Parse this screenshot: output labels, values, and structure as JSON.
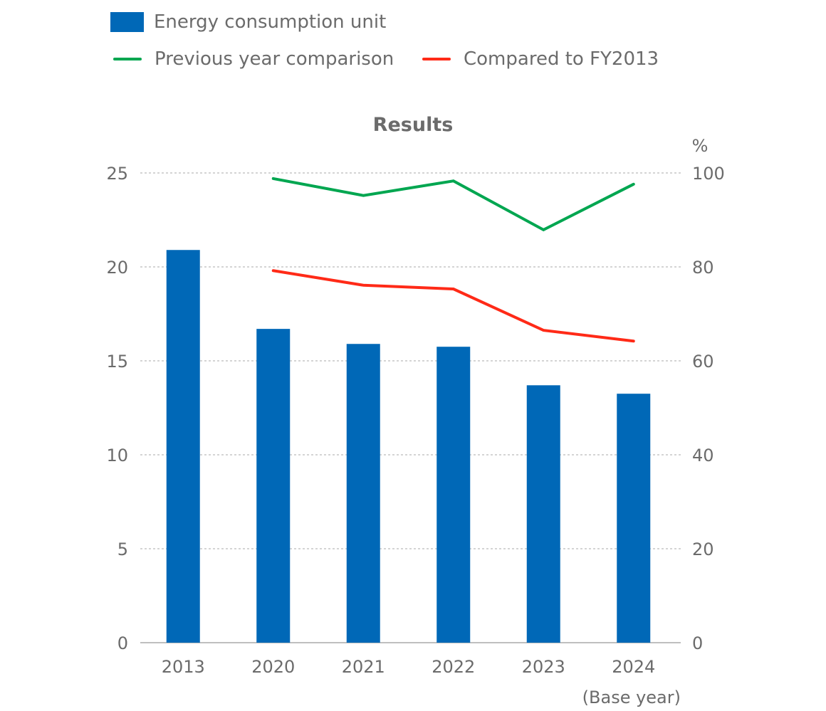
{
  "legend": {
    "items": [
      {
        "label": "Energy consumption unit",
        "type": "bar",
        "color": "#0068b7"
      },
      {
        "label": "Previous year comparison",
        "type": "line",
        "color": "#00a650"
      },
      {
        "label": "Compared to FY2013",
        "type": "line",
        "color": "#ff2a17"
      }
    ]
  },
  "chart_data": {
    "type": "bar",
    "title": "Results",
    "categories": [
      "2013",
      "2020",
      "2021",
      "2022",
      "2023",
      "2024"
    ],
    "category_note": "(Base year)",
    "series": [
      {
        "name": "Energy consumption unit",
        "type": "bar",
        "axis": "left",
        "color": "#0068b7",
        "values": [
          20.9,
          16.7,
          15.9,
          15.75,
          13.7,
          13.25
        ]
      },
      {
        "name": "Previous year comparison",
        "type": "line",
        "axis": "right",
        "color": "#00a650",
        "values": [
          null,
          98.8,
          95.2,
          98.3,
          87.9,
          97.6
        ]
      },
      {
        "name": "Compared to FY2013",
        "type": "line",
        "axis": "right",
        "color": "#ff2a17",
        "values": [
          null,
          79.2,
          76.1,
          75.3,
          66.5,
          64.2
        ]
      }
    ],
    "y_left": {
      "ticks": [
        0,
        5,
        10,
        15,
        20,
        25
      ],
      "range": [
        0,
        25
      ],
      "label": ""
    },
    "y_right": {
      "ticks": [
        0,
        20,
        40,
        60,
        80,
        100
      ],
      "range": [
        0,
        100
      ],
      "label": "%"
    },
    "xlabel": "",
    "grid": true,
    "legend_position": "top-left"
  }
}
